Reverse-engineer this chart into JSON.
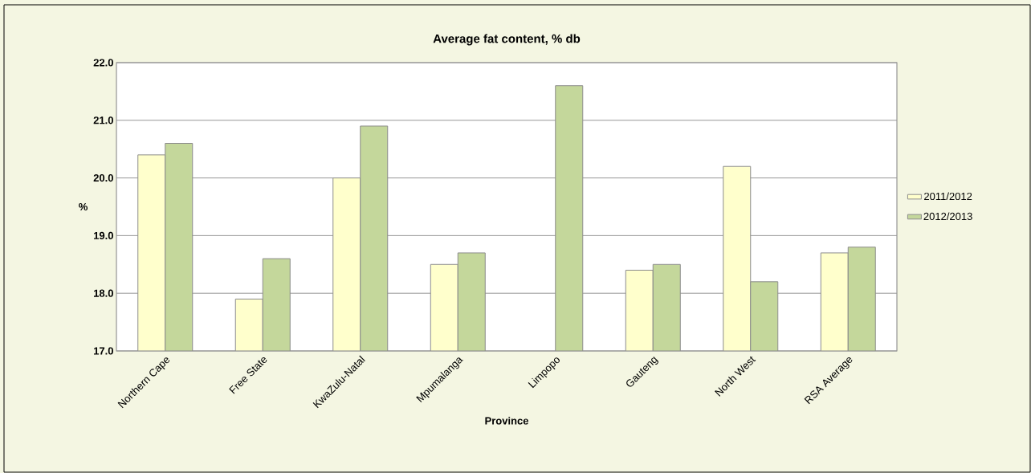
{
  "chart_data": {
    "type": "bar",
    "title": "Average fat content, % db",
    "xlabel": "Province",
    "ylabel": "%",
    "categories": [
      "Northern Cape",
      "Free State",
      "KwaZulu-Natal",
      "Mpumalanga",
      "Limpopo",
      "Gauteng",
      "North West",
      "RSA Average"
    ],
    "series": [
      {
        "name": "2011/2012",
        "color": "#ffffcc",
        "values": [
          20.4,
          17.9,
          20.0,
          18.5,
          null,
          18.4,
          20.2,
          18.7
        ]
      },
      {
        "name": "2012/2013",
        "color": "#c4d79b",
        "values": [
          20.6,
          18.6,
          20.9,
          18.7,
          21.6,
          18.5,
          18.2,
          18.8
        ]
      }
    ],
    "ylim": [
      17,
      22
    ],
    "yticks": [
      {
        "value": 17,
        "label": "17.0"
      },
      {
        "value": 18,
        "label": "18.0"
      },
      {
        "value": 19,
        "label": "19.0"
      },
      {
        "value": 20,
        "label": "20.0"
      },
      {
        "value": 21,
        "label": "21.0"
      },
      {
        "value": 22,
        "label": "22.0"
      }
    ],
    "grid": "y",
    "legend": "right"
  }
}
